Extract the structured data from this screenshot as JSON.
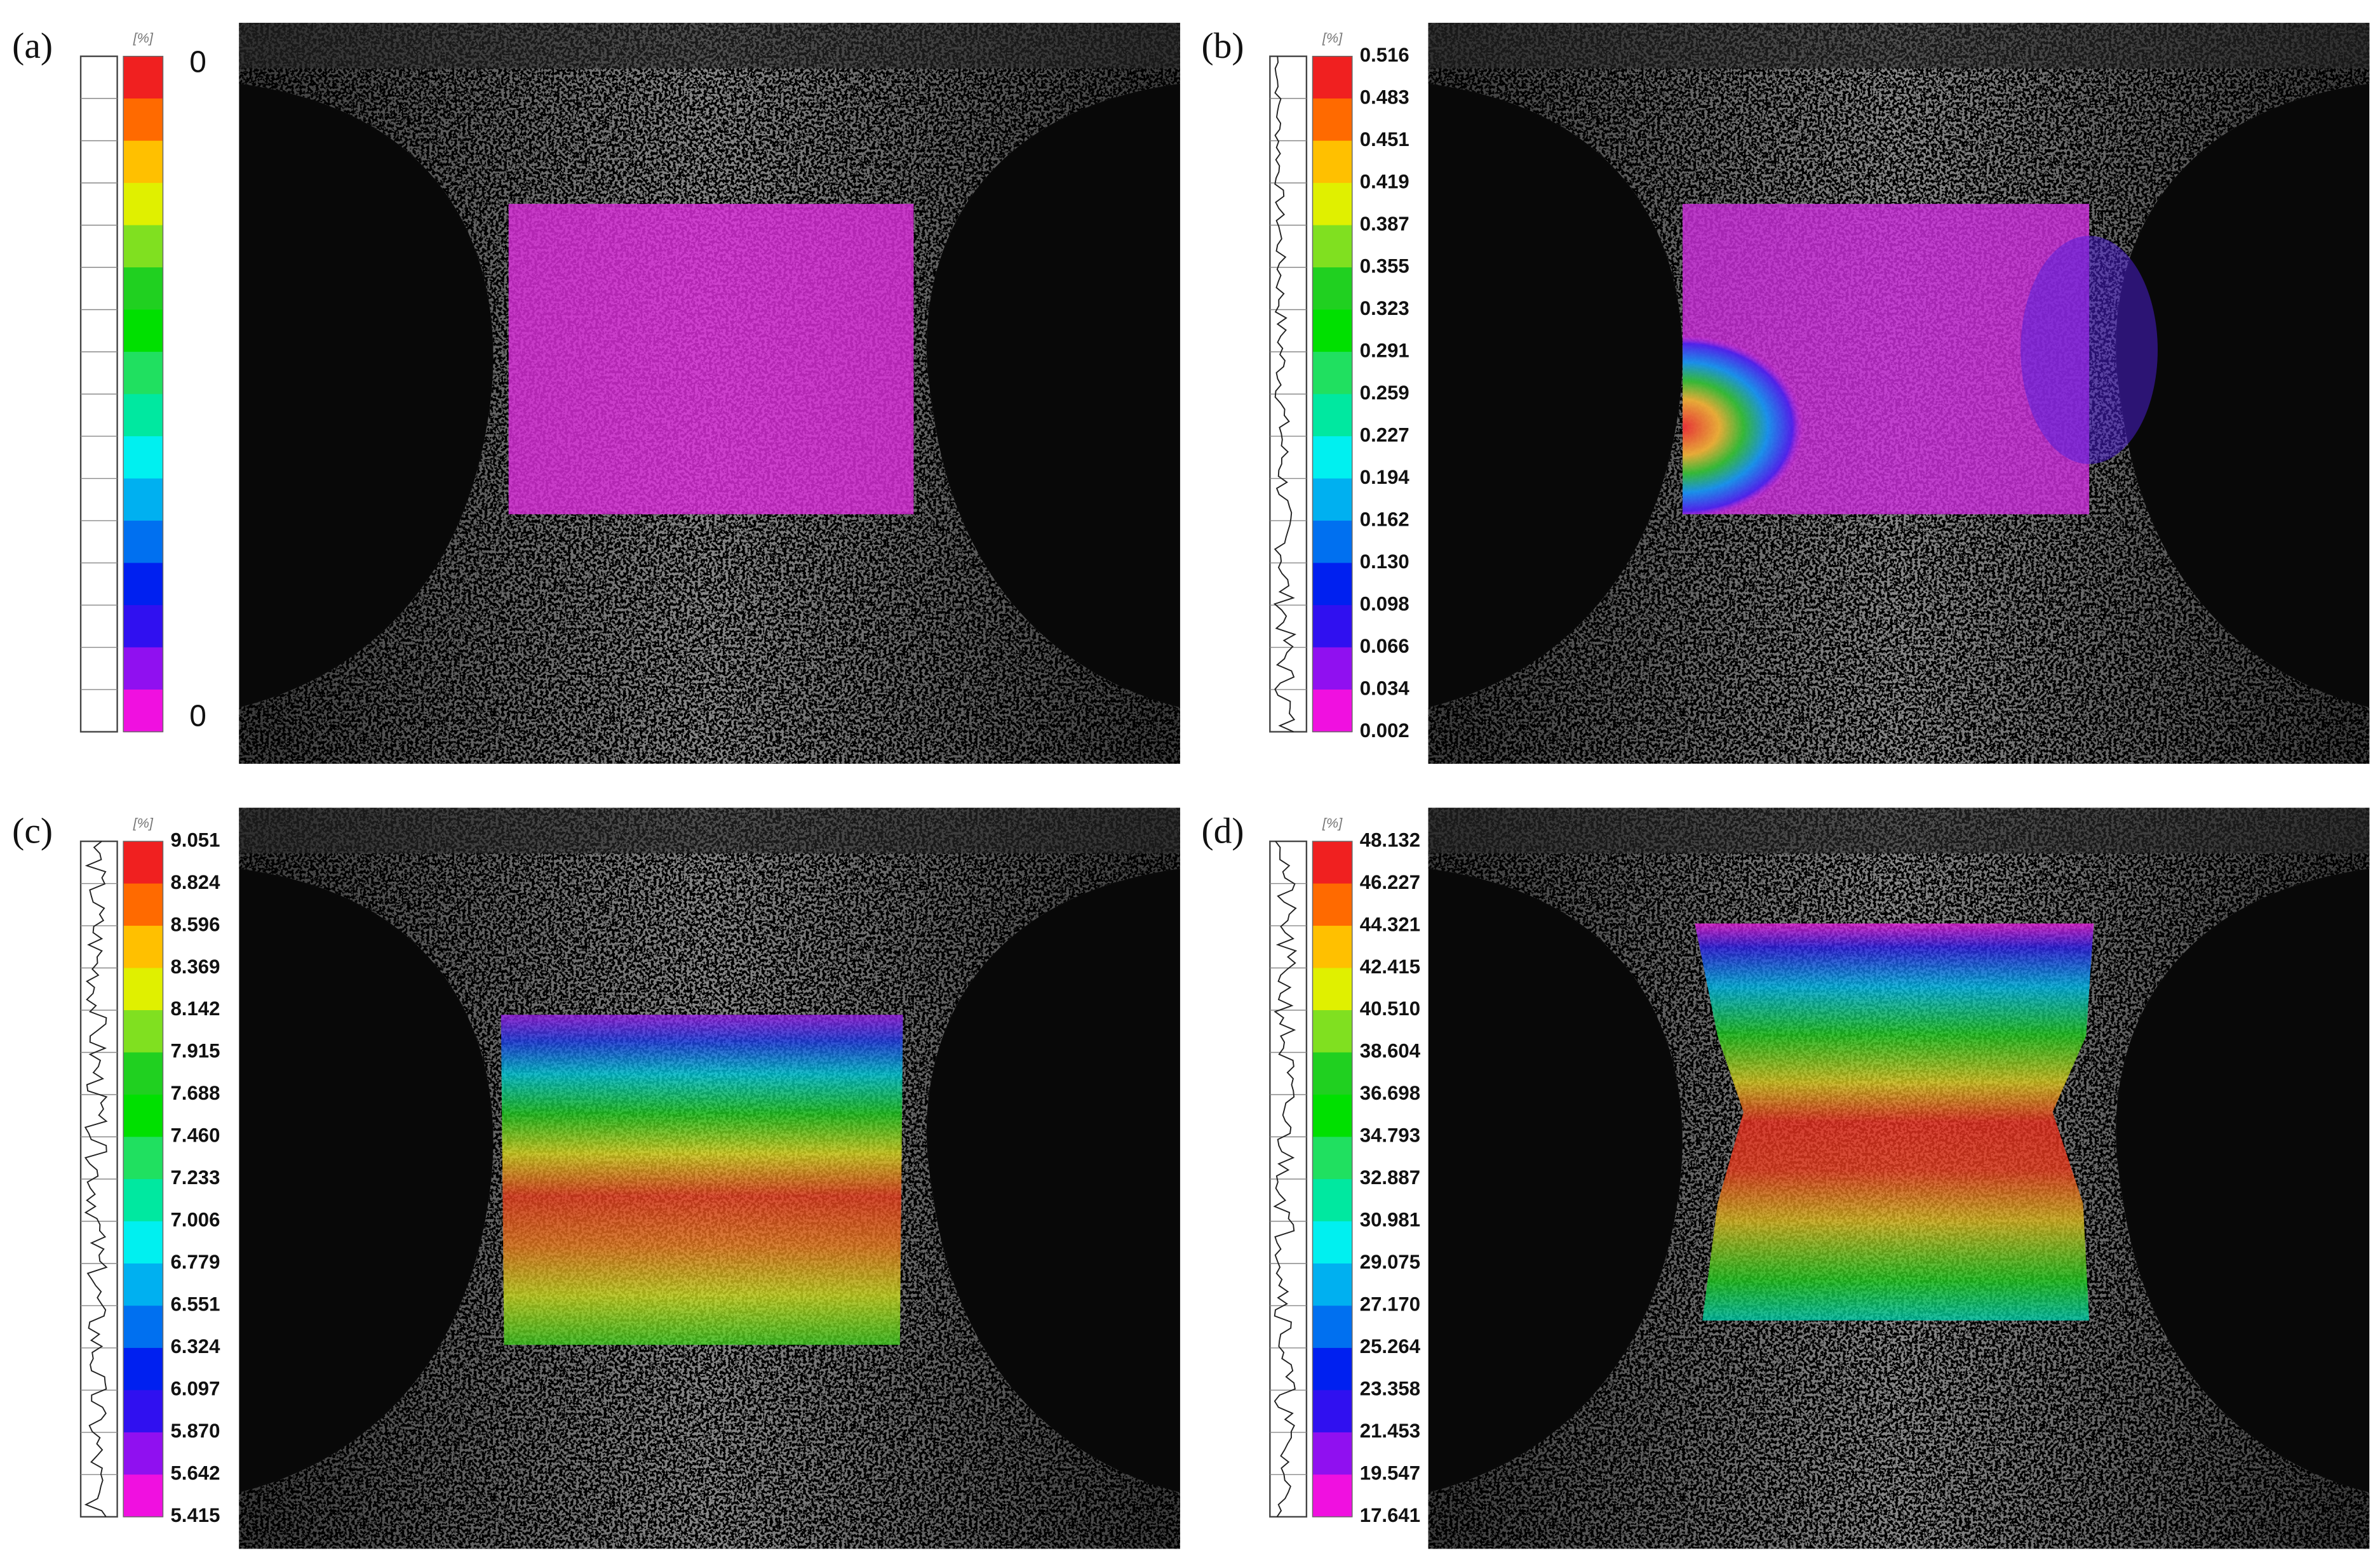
{
  "panels": [
    {
      "label": "(a)",
      "unit": "[%]",
      "scale_labels": [
        "0",
        "0"
      ]
    },
    {
      "label": "(b)",
      "unit": "[%]",
      "scale_labels": [
        "0.516",
        "0.483",
        "0.451",
        "0.419",
        "0.387",
        "0.355",
        "0.323",
        "0.291",
        "0.259",
        "0.227",
        "0.194",
        "0.162",
        "0.130",
        "0.098",
        "0.066",
        "0.034",
        "0.002"
      ]
    },
    {
      "label": "(c)",
      "unit": "[%]",
      "scale_labels": [
        "9.051",
        "8.824",
        "8.596",
        "8.369",
        "8.142",
        "7.915",
        "7.688",
        "7.460",
        "7.233",
        "7.006",
        "6.779",
        "6.551",
        "6.324",
        "6.097",
        "5.870",
        "5.642",
        "5.415"
      ]
    },
    {
      "label": "(d)",
      "unit": "[%]",
      "scale_labels": [
        "48.132",
        "46.227",
        "44.321",
        "42.415",
        "40.510",
        "38.604",
        "36.698",
        "34.793",
        "32.887",
        "30.981",
        "29.075",
        "27.170",
        "25.264",
        "23.358",
        "21.453",
        "19.547",
        "17.641"
      ]
    }
  ]
}
